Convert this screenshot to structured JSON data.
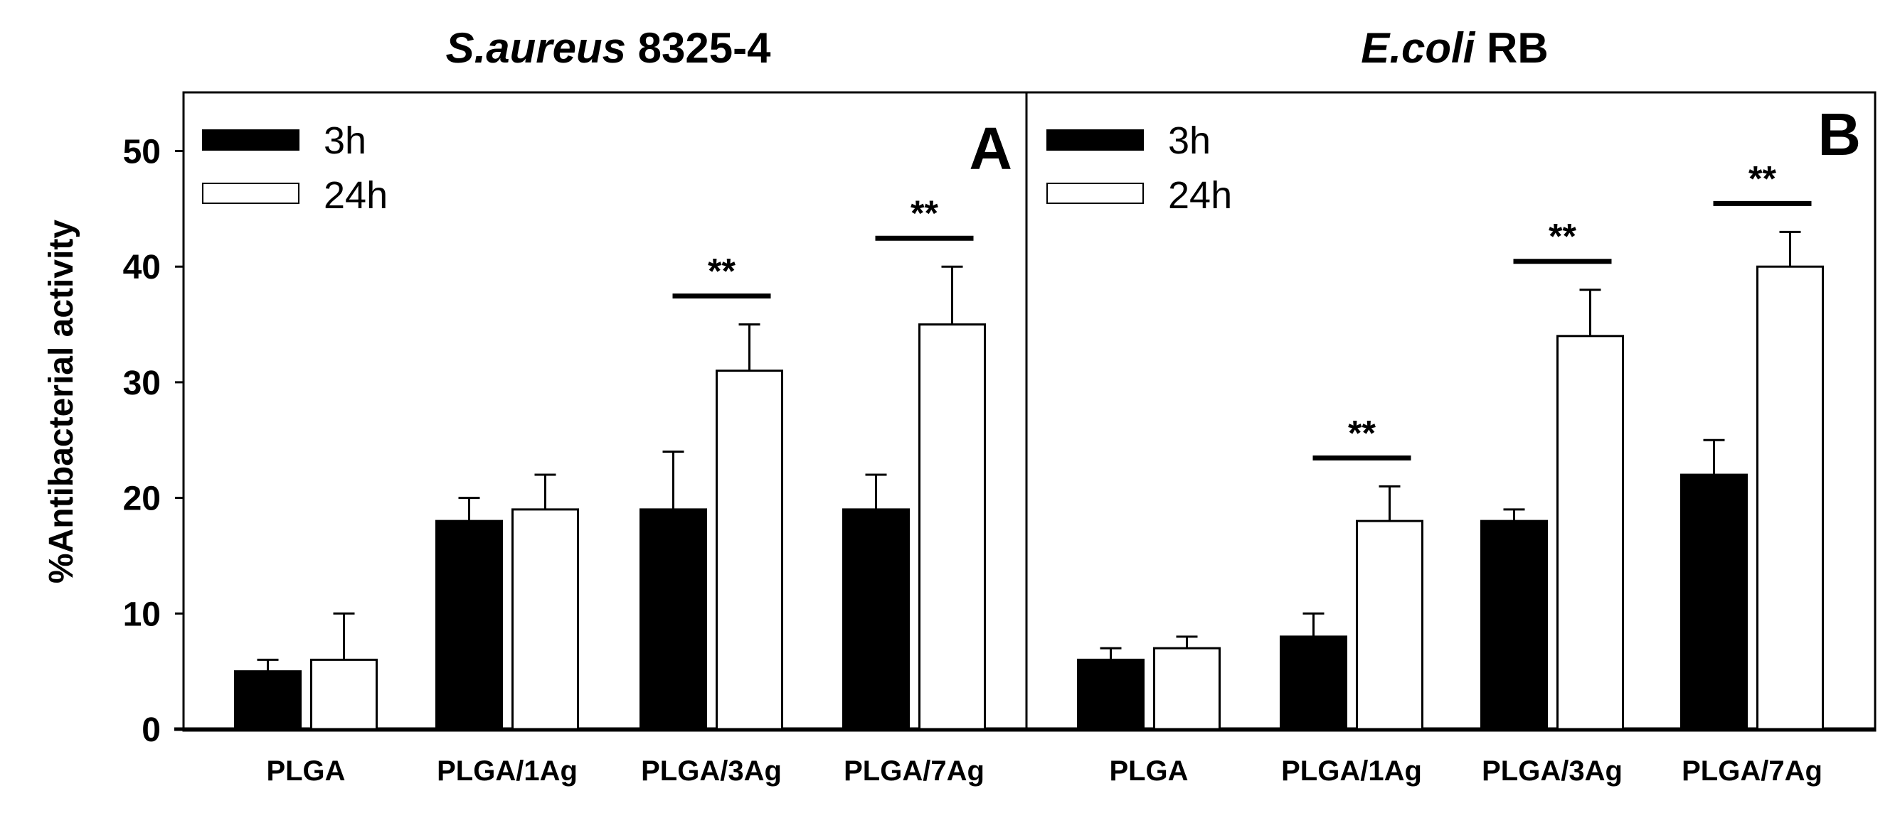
{
  "chart_data": {
    "type": "bar",
    "ylabel": "%Antibacterial activity",
    "ylim": [
      0,
      55
    ],
    "yticks": [
      0,
      10,
      20,
      30,
      40,
      50
    ],
    "categories": [
      "PLGA",
      "PLGA/1Ag",
      "PLGA/3Ag",
      "PLGA/7Ag"
    ],
    "series_names": [
      "3h",
      "24h"
    ],
    "series_colors": [
      "#000000",
      "#ffffff"
    ],
    "significance_label": "**",
    "legend_position": "top-left",
    "grid": false,
    "panels": [
      {
        "title_italic": "S.aureus",
        "title_rest": " 8325-4",
        "panel_label": "A",
        "series": [
          {
            "name": "3h",
            "values": [
              5,
              18,
              19,
              19
            ],
            "errors": [
              1,
              2,
              5,
              3
            ]
          },
          {
            "name": "24h",
            "values": [
              6,
              19,
              31,
              35
            ],
            "errors": [
              4,
              3,
              4,
              5
            ]
          }
        ],
        "significant_categories": [
          "PLGA/3Ag",
          "PLGA/7Ag"
        ]
      },
      {
        "title_italic": "E.coli",
        "title_rest": " RB",
        "panel_label": "B",
        "series": [
          {
            "name": "3h",
            "values": [
              6,
              8,
              18,
              22
            ],
            "errors": [
              1,
              2,
              1,
              3
            ]
          },
          {
            "name": "24h",
            "values": [
              7,
              18,
              34,
              40
            ],
            "errors": [
              1,
              3,
              4,
              3
            ]
          }
        ],
        "significant_categories": [
          "PLGA/1Ag",
          "PLGA/3Ag",
          "PLGA/7Ag"
        ]
      }
    ]
  }
}
